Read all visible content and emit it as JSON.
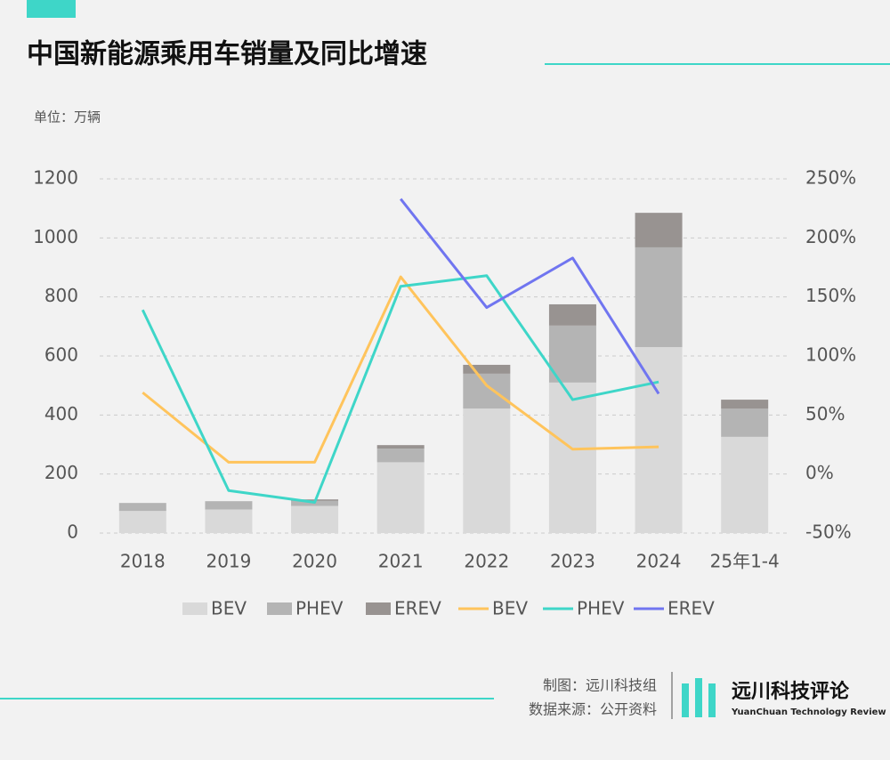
{
  "chart_data": {
    "type": "bar",
    "stacked": true,
    "title": "中国新能源乘用车销量及同比增速",
    "unit_label": "单位：万辆",
    "credit": "制图：远川科技组",
    "source": "数据来源：公开资料",
    "brand": "远川科技评论",
    "brand_en": "YuanChuan Technology Review",
    "categories": [
      "2018",
      "2019",
      "2020",
      "2021",
      "2022",
      "2023",
      "2024",
      "25年1-4"
    ],
    "series": [
      {
        "name": "BEV",
        "type": "bar",
        "color": "#d9d9d9",
        "values": [
          75,
          80,
          92,
          240,
          422,
          510,
          630,
          326
        ]
      },
      {
        "name": "PHEV",
        "type": "bar",
        "color": "#b4b4b4",
        "values": [
          27,
          28,
          17,
          46,
          118,
          193,
          338,
          96
        ]
      },
      {
        "name": "EREV",
        "type": "bar",
        "color": "#989391",
        "values": [
          0,
          0,
          5,
          12,
          30,
          72,
          117,
          30
        ]
      },
      {
        "name": "BEV",
        "type": "line",
        "axis": "y2",
        "color": "#ffc45c",
        "values": [
          69,
          10,
          10,
          167,
          75,
          21,
          23,
          null
        ]
      },
      {
        "name": "PHEV",
        "type": "line",
        "axis": "y2",
        "color": "#3ed6c8",
        "values": [
          139,
          -14,
          -24,
          159,
          168,
          63,
          78,
          null
        ]
      },
      {
        "name": "EREV",
        "type": "line",
        "axis": "y2",
        "color": "#7075f0",
        "values": [
          null,
          null,
          null,
          233,
          141,
          183,
          68,
          null
        ]
      }
    ],
    "ylim": [
      0,
      1200
    ],
    "yticks": [
      0,
      200,
      400,
      600,
      800,
      1000,
      1200
    ],
    "y2lim": [
      -50,
      250
    ],
    "y2ticks": [
      {
        "value": -50,
        "label": "-50%"
      },
      {
        "value": 0,
        "label": "0%"
      },
      {
        "value": 50,
        "label": "50%"
      },
      {
        "value": 100,
        "label": "100%"
      },
      {
        "value": 150,
        "label": "150%"
      },
      {
        "value": 200,
        "label": "200%"
      },
      {
        "value": 250,
        "label": "250%"
      }
    ],
    "grid": true,
    "legend": "bottom"
  }
}
